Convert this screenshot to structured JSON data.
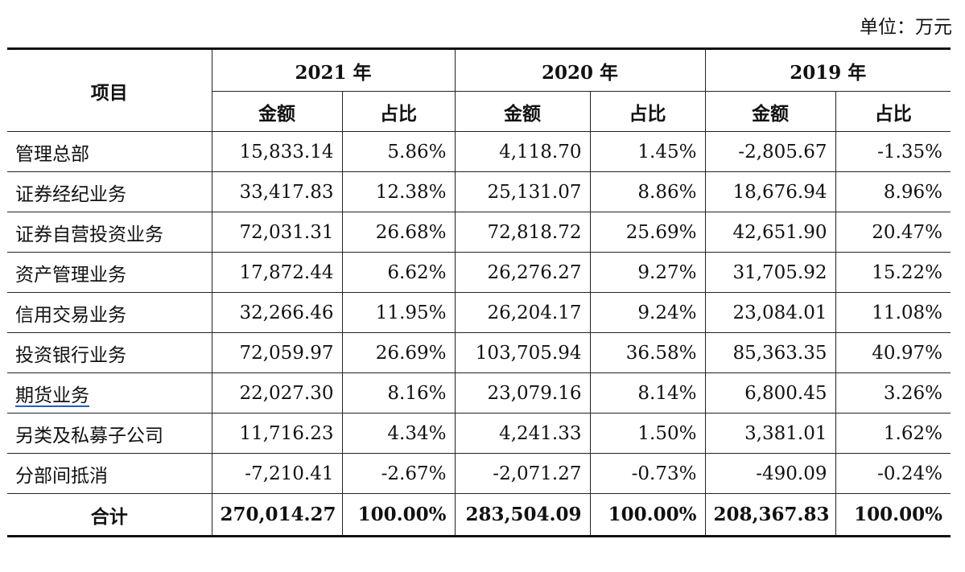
{
  "unit_label": "单位：万元",
  "header": {
    "item": "项目",
    "years": [
      "2021 年",
      "2020 年",
      "2019 年"
    ],
    "amount": "金额",
    "ratio": "占比"
  },
  "rows": [
    {
      "name": "管理总部",
      "v": [
        "15,833.14",
        "5.86%",
        "4,118.70",
        "1.45%",
        "-2,805.67",
        "-1.35%"
      ]
    },
    {
      "name": "证券经纪业务",
      "v": [
        "33,417.83",
        "12.38%",
        "25,131.07",
        "8.86%",
        "18,676.94",
        "8.96%"
      ]
    },
    {
      "name": "证券自营投资业务",
      "v": [
        "72,031.31",
        "26.68%",
        "72,818.72",
        "25.69%",
        "42,651.90",
        "20.47%"
      ]
    },
    {
      "name": "资产管理业务",
      "v": [
        "17,872.44",
        "6.62%",
        "26,276.27",
        "9.27%",
        "31,705.92",
        "15.22%"
      ]
    },
    {
      "name": "信用交易业务",
      "v": [
        "32,266.46",
        "11.95%",
        "26,204.17",
        "9.24%",
        "23,084.01",
        "11.08%"
      ]
    },
    {
      "name": "投资银行业务",
      "v": [
        "72,059.97",
        "26.69%",
        "103,705.94",
        "36.58%",
        "85,363.35",
        "40.97%"
      ]
    },
    {
      "name": "期货业务",
      "v": [
        "22,027.30",
        "8.16%",
        "23,079.16",
        "8.14%",
        "6,800.45",
        "3.26%"
      ]
    },
    {
      "name": "另类及私募子公司",
      "v": [
        "11,716.23",
        "4.34%",
        "4,241.33",
        "1.50%",
        "3,381.01",
        "1.62%"
      ]
    },
    {
      "name": "分部间抵消",
      "v": [
        "-7,210.41",
        "-2.67%",
        "-2,071.27",
        "-0.73%",
        "-490.09",
        "-0.24%"
      ]
    }
  ],
  "total": {
    "name": "合计",
    "v": [
      "270,014.27",
      "100.00%",
      "283,504.09",
      "100.00%",
      "208,367.83",
      "100.00%"
    ]
  }
}
